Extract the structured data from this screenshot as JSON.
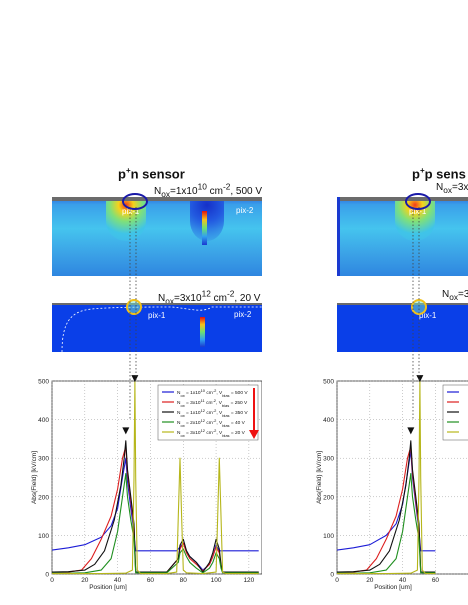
{
  "panels": [
    {
      "title_pre": "p",
      "title_sup": "+",
      "title_post": "n sensor",
      "top_label": "N_ox=1x10^10 cm^-2, 500 V",
      "mid_label": "N_ox=3x10^12 cm^-2, 20 V",
      "pix1": "pix-1",
      "pix2": "pix-2"
    },
    {
      "title_pre": "p",
      "title_sup": "+",
      "title_post": "p sens",
      "top_label": "N_ox=3x",
      "mid_label": "N_ox=3",
      "pix1": "pix-1"
    }
  ],
  "colors": {
    "sim_light_top": "#43c8ec",
    "sim_light_bottom": "#2e86e0",
    "sim_dark": "#0a3fe8",
    "oval": "#1a1aa8",
    "arrow": "#ee1111"
  },
  "chart_data": [
    {
      "type": "line",
      "xlabel": "Position [um]",
      "ylabel": "Abs(Field) [kV/cm]",
      "xlim": [
        0,
        128
      ],
      "ylim": [
        0,
        500
      ],
      "x_ticks": [
        "0",
        "20",
        "40",
        "60",
        "80",
        "100",
        "120"
      ],
      "y_ticks": [
        "0",
        "100",
        "200",
        "300",
        "400",
        "500"
      ],
      "grid": true,
      "legend_position": "top-right",
      "series": [
        {
          "legend": "N_ox = 1x10^10 cm^-2, V_bias = 500 V",
          "color": "#1c1cd6",
          "x": [
            0,
            10,
            20,
            30,
            36,
            40,
            43,
            45,
            46,
            48,
            49,
            50,
            51,
            52,
            60,
            70,
            76,
            78,
            80,
            82,
            84,
            88,
            92,
            96,
            98,
            100,
            102,
            103,
            104,
            110,
            118,
            126
          ],
          "y": [
            62,
            68,
            76,
            95,
            125,
            170,
            250,
            300,
            240,
            170,
            140,
            100,
            60,
            60,
            60,
            60,
            60,
            70,
            80,
            60,
            45,
            30,
            10,
            25,
            45,
            75,
            60,
            60,
            60,
            60,
            60,
            60
          ]
        },
        {
          "legend": "N_ox = 3x10^11 cm^-2, V_bias = 250 V",
          "color": "#dd1f1f",
          "x": [
            0,
            10,
            18,
            24,
            30,
            36,
            40,
            43,
            45,
            46,
            48,
            50,
            51,
            52,
            70,
            77,
            78,
            80,
            82,
            84,
            88,
            92,
            96,
            98,
            100,
            102,
            103,
            104,
            126
          ],
          "y": [
            5,
            5,
            10,
            40,
            90,
            150,
            220,
            300,
            330,
            260,
            190,
            120,
            5,
            5,
            5,
            40,
            65,
            80,
            55,
            40,
            25,
            8,
            25,
            45,
            70,
            55,
            20,
            5,
            5
          ]
        },
        {
          "legend": "N_ox = 1x10^12 cm^-2, V_bias = 350 V",
          "color": "#111111",
          "x": [
            0,
            10,
            20,
            26,
            32,
            38,
            42,
            44,
            45,
            46,
            48,
            50,
            51,
            52,
            70,
            77,
            78,
            80,
            82,
            84,
            88,
            92,
            96,
            98,
            100,
            102,
            103,
            104,
            126
          ],
          "y": [
            5,
            6,
            10,
            25,
            60,
            140,
            230,
            300,
            345,
            270,
            200,
            130,
            5,
            5,
            5,
            40,
            75,
            90,
            60,
            45,
            30,
            5,
            30,
            55,
            90,
            65,
            25,
            5,
            5
          ]
        },
        {
          "legend": "N_ox = 2x10^12 cm^-2, V_bias = 40 V",
          "color": "#1f8f1f",
          "x": [
            0,
            10,
            20,
            30,
            36,
            40,
            43,
            45,
            46,
            48,
            50,
            51,
            52,
            70,
            77,
            78,
            80,
            82,
            84,
            88,
            92,
            96,
            98,
            100,
            102,
            103,
            104,
            126
          ],
          "y": [
            2,
            2,
            3,
            10,
            40,
            110,
            200,
            260,
            200,
            140,
            90,
            3,
            3,
            3,
            30,
            55,
            65,
            45,
            30,
            15,
            3,
            15,
            30,
            55,
            40,
            15,
            3,
            3
          ]
        },
        {
          "legend": "N_ox = 3x10^12 cm^-2, V_bias = 20 V",
          "color": "#b6b61a",
          "x": [
            0,
            10,
            30,
            45,
            49,
            50,
            50.5,
            51,
            52,
            54,
            60,
            70,
            76,
            77,
            78,
            79,
            80,
            82,
            92,
            100,
            101,
            102,
            103,
            104,
            106,
            126
          ],
          "y": [
            1,
            1,
            1,
            2,
            10,
            250,
            500,
            250,
            10,
            1,
            1,
            1,
            5,
            150,
            300,
            150,
            10,
            3,
            1,
            5,
            150,
            300,
            150,
            5,
            1,
            1
          ]
        }
      ]
    },
    {
      "type": "line",
      "xlabel": "Position [um]",
      "ylabel": "Abs(Field) [kV/cm]",
      "xlim": [
        0,
        128
      ],
      "ylim": [
        0,
        500
      ],
      "x_ticks": [
        "0",
        "20",
        "40",
        "60",
        "80"
      ],
      "y_ticks": [
        "0",
        "100",
        "200",
        "300",
        "400",
        "500"
      ],
      "grid": true,
      "legend_position": "top-right",
      "series": [
        {
          "color": "#1c1cd6",
          "x": [
            0,
            10,
            20,
            30,
            36,
            40,
            43,
            45,
            46,
            48,
            50,
            51,
            52,
            60
          ],
          "y": [
            62,
            68,
            76,
            100,
            130,
            180,
            260,
            320,
            250,
            180,
            110,
            60,
            60,
            60
          ]
        },
        {
          "color": "#dd1f1f",
          "x": [
            0,
            10,
            18,
            24,
            30,
            36,
            40,
            43,
            45,
            46,
            48,
            50,
            51,
            52,
            60
          ],
          "y": [
            5,
            5,
            10,
            40,
            90,
            150,
            220,
            300,
            330,
            260,
            190,
            120,
            5,
            5,
            5
          ]
        },
        {
          "color": "#111111",
          "x": [
            0,
            10,
            20,
            26,
            32,
            38,
            42,
            44,
            45,
            46,
            48,
            50,
            51,
            52,
            60
          ],
          "y": [
            5,
            6,
            10,
            25,
            60,
            140,
            230,
            300,
            345,
            270,
            200,
            130,
            5,
            5,
            5
          ]
        },
        {
          "color": "#1f8f1f",
          "x": [
            0,
            10,
            20,
            30,
            36,
            40,
            43,
            45,
            46,
            48,
            50,
            51,
            52,
            60
          ],
          "y": [
            2,
            2,
            3,
            10,
            40,
            110,
            200,
            260,
            200,
            140,
            90,
            3,
            3,
            3
          ]
        },
        {
          "color": "#b6b61a",
          "x": [
            0,
            10,
            30,
            45,
            49,
            50,
            50.5,
            51,
            52,
            54,
            60
          ],
          "y": [
            1,
            1,
            1,
            2,
            10,
            250,
            500,
            250,
            10,
            1,
            1
          ]
        }
      ]
    }
  ]
}
